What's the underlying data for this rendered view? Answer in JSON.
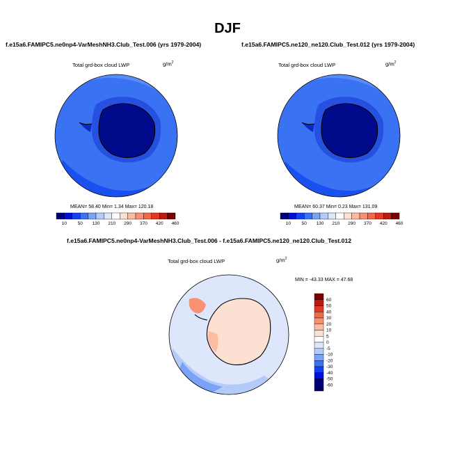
{
  "figure_title": "DJF",
  "panels": [
    {
      "title": "f.e15a6.FAMIPC5.ne0np4-VarMeshNH3.Club_Test.006 (yrs 1979-2004)",
      "field": "Total grd-box cloud LWP",
      "units": "g/m",
      "units_exp": "2",
      "stats": "MEAN=  58.40  Min=   1.34  Max= 120.18"
    },
    {
      "title": "f.e15a6.FAMIPC5.ne120_ne120.Club_Test.012 (yrs 1979-2004)",
      "field": "Total grd-box cloud LWP",
      "units": "g/m",
      "units_exp": "2",
      "stats": "MEAN=  60.37  Min=   0.23  Max= 131.09"
    },
    {
      "title": "f.e15a6.FAMIPC5.ne0np4-VarMeshNH3.Club_Test.006 - f.e15a6.FAMIPC5.ne120_ne120.Club_Test.012",
      "field": "Total grd-box cloud LWP",
      "units": "g/m",
      "units_exp": "2",
      "stats": "MIN = -43.33 MAX =  47.68"
    }
  ],
  "chart_data": [
    {
      "type": "heatmap",
      "projection": "polar stereographic (south pole)",
      "title": "f.e15a6.FAMIPC5.ne0np4-VarMeshNH3.Club_Test.006 (yrs 1979-2004)",
      "variable": "Total grd-box cloud LWP",
      "units": "g/m2",
      "mean": 58.4,
      "min": 1.34,
      "max": 120.18,
      "contour_levels": [
        10,
        50,
        130,
        210,
        290,
        370,
        420,
        460
      ],
      "colorbar_labels": [
        "10",
        "50",
        "130",
        "210",
        "290",
        "370",
        "420",
        "460"
      ],
      "colorbar_colors": [
        "#00007a",
        "#0010d8",
        "#1440ee",
        "#3a72f4",
        "#7aa2f6",
        "#b4caf8",
        "#dde6fa",
        "#ffffff",
        "#fce0d2",
        "#fbbca2",
        "#f89074",
        "#f06a4a",
        "#e03a24",
        "#b81c10",
        "#7a0000"
      ]
    },
    {
      "type": "heatmap",
      "projection": "polar stereographic (south pole)",
      "title": "f.e15a6.FAMIPC5.ne120_ne120.Club_Test.012 (yrs 1979-2004)",
      "variable": "Total grd-box cloud LWP",
      "units": "g/m2",
      "mean": 60.37,
      "min": 0.23,
      "max": 131.09,
      "contour_levels": [
        10,
        50,
        130,
        210,
        290,
        370,
        420,
        460
      ],
      "colorbar_labels": [
        "10",
        "50",
        "130",
        "210",
        "290",
        "370",
        "420",
        "460"
      ],
      "colorbar_colors": [
        "#00007a",
        "#0010d8",
        "#1440ee",
        "#3a72f4",
        "#7aa2f6",
        "#b4caf8",
        "#dde6fa",
        "#ffffff",
        "#fce0d2",
        "#fbbca2",
        "#f89074",
        "#f06a4a",
        "#e03a24",
        "#b81c10",
        "#7a0000"
      ]
    },
    {
      "type": "heatmap",
      "projection": "polar stereographic (south pole)",
      "title": "f.e15a6.FAMIPC5.ne0np4-VarMeshNH3.Club_Test.006 - f.e15a6.FAMIPC5.ne120_ne120.Club_Test.012",
      "variable": "Total grd-box cloud LWP",
      "units": "g/m2",
      "min": -43.33,
      "max": 47.68,
      "contour_levels": [
        -60,
        -50,
        -40,
        -30,
        -20,
        -10,
        -5,
        0,
        5,
        10,
        20,
        30,
        40,
        50,
        60
      ],
      "colorbar_labels": [
        "60",
        "50",
        "40",
        "30",
        "20",
        "10",
        "5",
        "0",
        "-5",
        "-10",
        "-20",
        "-30",
        "-40",
        "-50",
        "-60"
      ],
      "colorbar_colors": [
        "#7a0000",
        "#b81c10",
        "#e03a24",
        "#f06a4a",
        "#f89074",
        "#fbbca2",
        "#fce0d2",
        "#ffffff",
        "#dde6fa",
        "#b4caf8",
        "#7aa2f6",
        "#3a72f4",
        "#1440ee",
        "#0010d8",
        "#00007a",
        "#00006a"
      ]
    }
  ]
}
